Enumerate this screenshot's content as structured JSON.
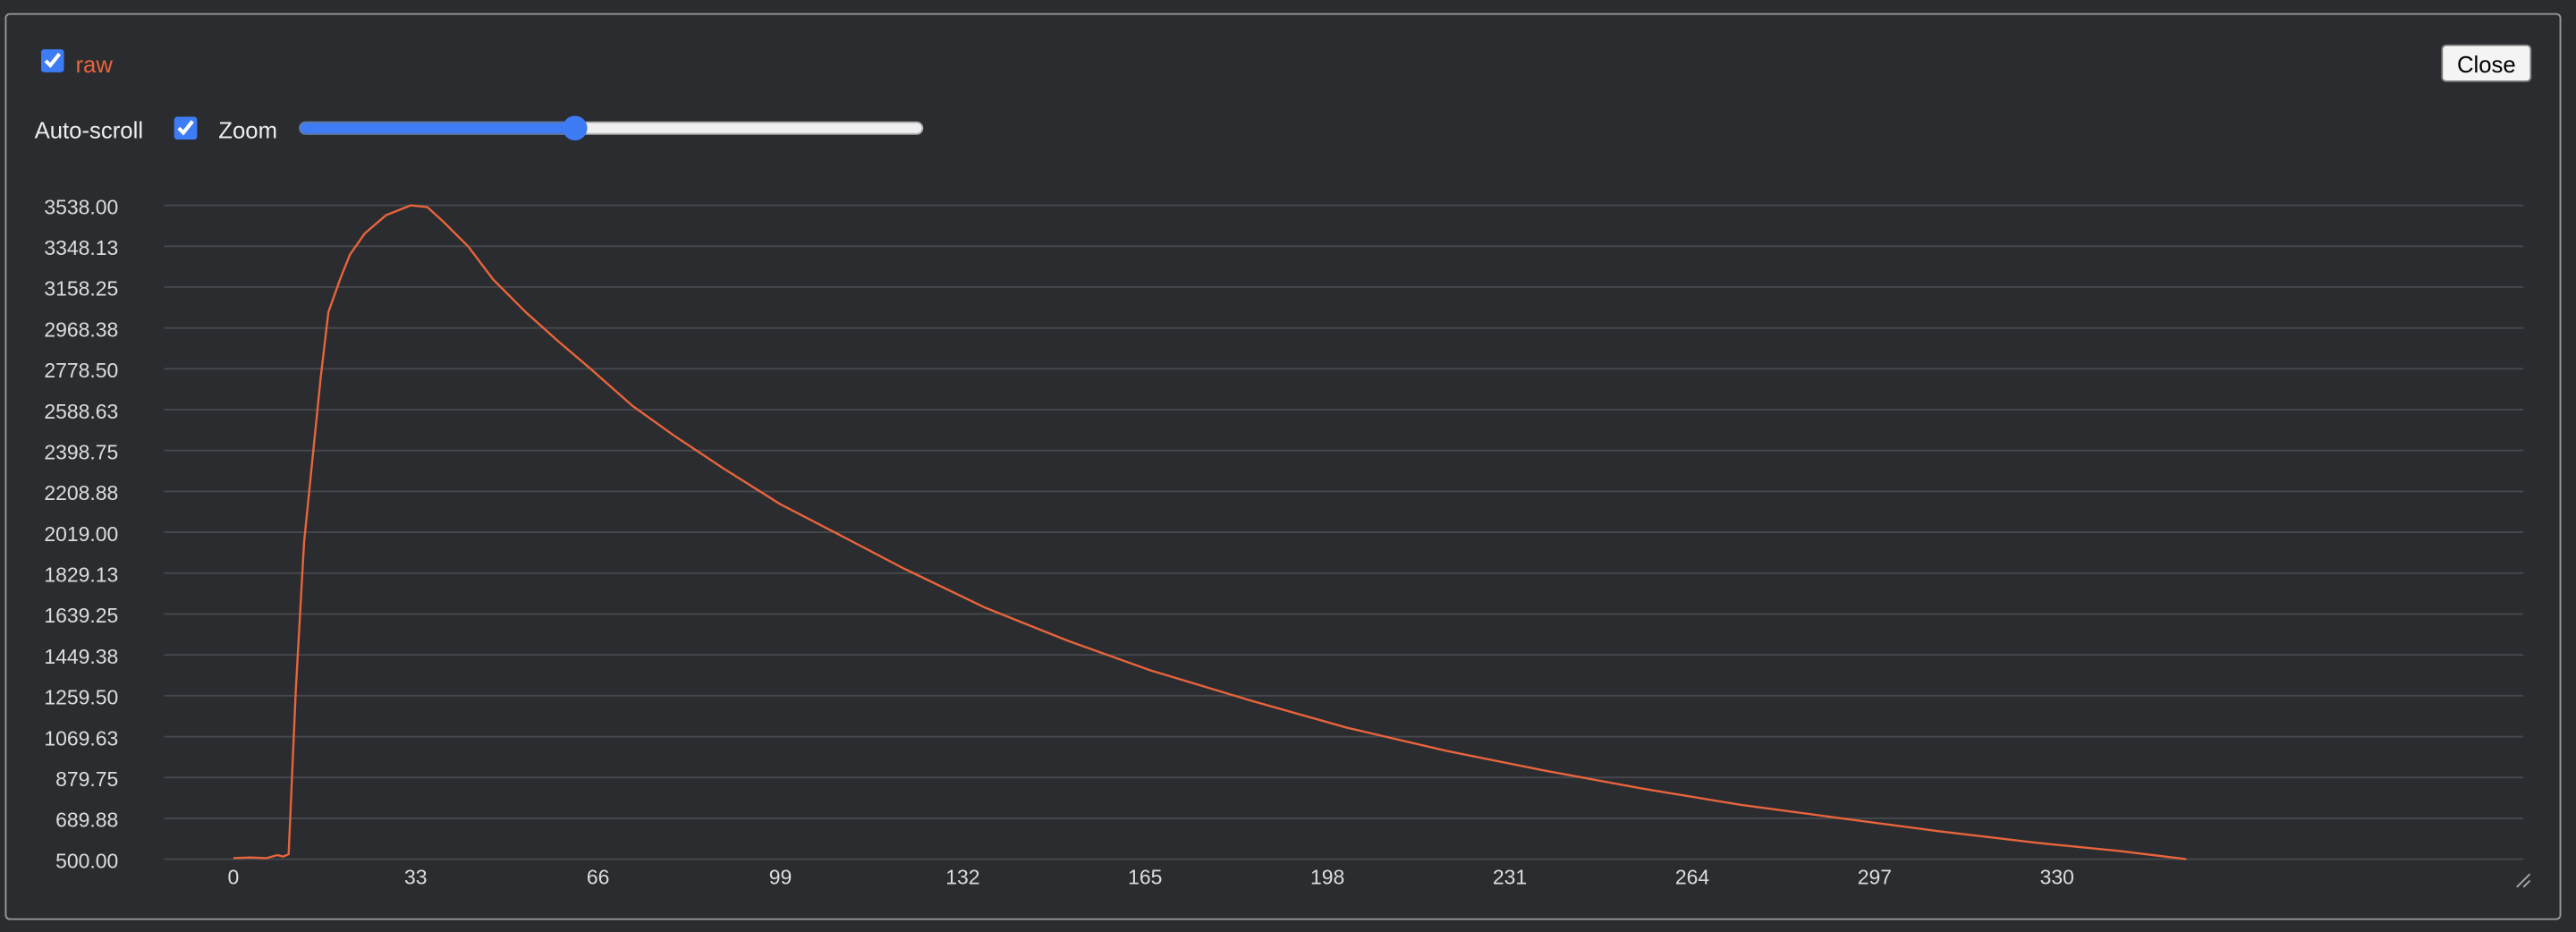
{
  "chart_data": {
    "type": "line",
    "x": [
      0,
      3,
      6,
      8,
      9,
      10,
      11.3,
      12.8,
      14.3,
      15.8,
      17.2,
      19.3,
      21.1,
      23.8,
      27.6,
      32.1,
      35.1,
      38,
      42.5,
      47,
      52.9,
      58.9,
      64.8,
      72.2,
      79.7,
      88.6,
      99,
      109.4,
      121.3,
      136.1,
      151,
      165.9,
      183.7,
      201.5,
      219.4,
      237.2,
      255,
      272.9,
      290.7,
      308.6,
      326.4,
      341.3,
      353.4
    ],
    "series": [
      {
        "name": "raw",
        "color": "#e8643c",
        "values": [
          505,
          508,
          505,
          519,
          512,
          523,
          1286,
          1973,
          2355,
          2737,
          3042,
          3194,
          3309,
          3408,
          3492,
          3538,
          3530,
          3462,
          3347,
          3194,
          3042,
          2904,
          2775,
          2607,
          2469,
          2317,
          2149,
          2011,
          1851,
          1668,
          1515,
          1378,
          1240,
          1111,
          1004,
          912,
          828,
          752,
          691,
          630,
          576,
          538,
          500
        ]
      }
    ],
    "xlim": [
      -12.5,
      414.4
    ],
    "ylim": [
      500,
      3538
    ],
    "xticks": [
      0,
      33,
      66,
      99,
      132,
      165,
      198,
      231,
      264,
      297,
      330
    ],
    "yticks": [
      {
        "value": 500,
        "label": "500.00"
      },
      689.88,
      879.75,
      1069.63,
      {
        "value": 1259.5,
        "label": "1259.50"
      },
      1449.38,
      1639.25,
      1829.13,
      {
        "value": 2019,
        "label": "2019.00"
      },
      2208.88,
      2398.75,
      2588.63,
      {
        "value": 2778.5,
        "label": "2778.50"
      },
      2968.38,
      3158.25,
      3348.13,
      {
        "value": 3538,
        "label": "3538.00"
      }
    ],
    "grid": true
  },
  "controls": {
    "series_checked": true,
    "close": "Close",
    "auto_scroll": {
      "label": "Auto-scroll",
      "checked": true
    },
    "zoom": {
      "label": "Zoom",
      "value": 44
    }
  }
}
